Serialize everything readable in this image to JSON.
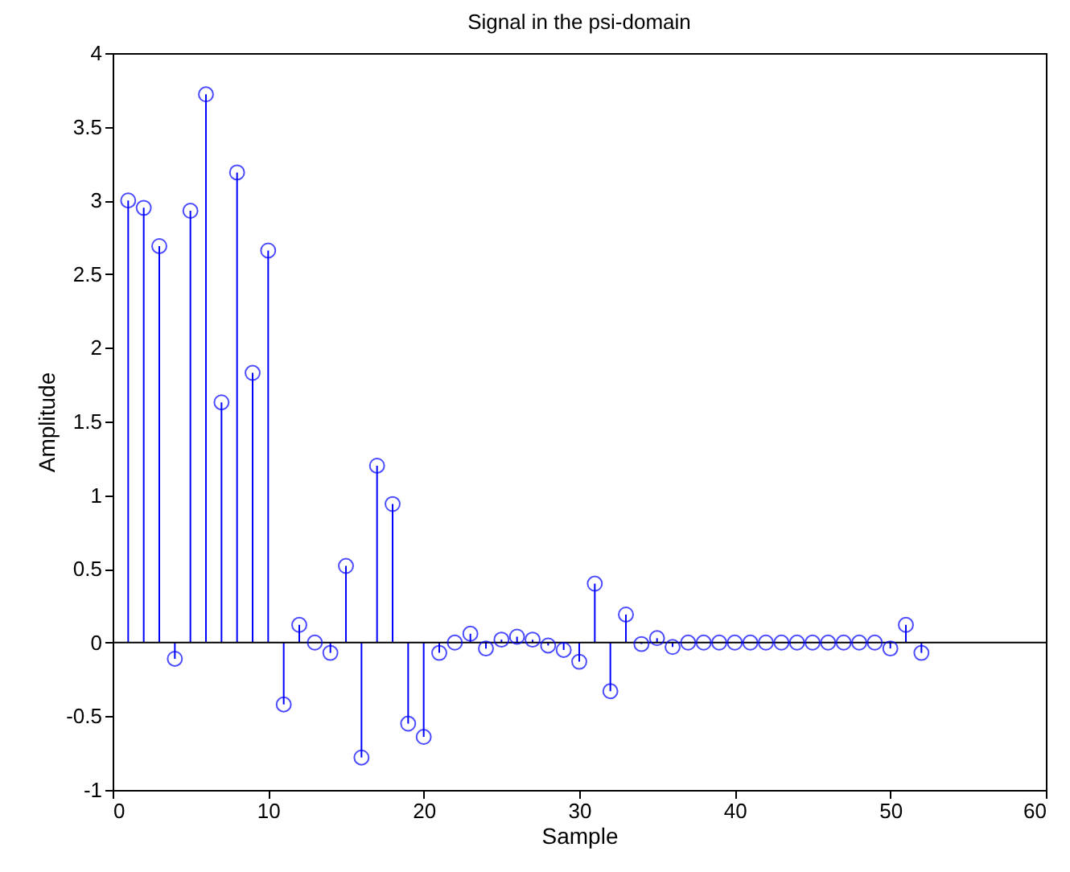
{
  "chart_data": {
    "type": "lollipop",
    "title": "Signal in the psi-domain",
    "xlabel": "Sample",
    "ylabel": "Amplitude",
    "x": [
      1,
      2,
      3,
      4,
      5,
      6,
      7,
      8,
      9,
      10,
      11,
      12,
      13,
      14,
      15,
      16,
      17,
      18,
      19,
      20,
      21,
      22,
      23,
      24,
      25,
      26,
      27,
      28,
      29,
      30,
      31,
      32,
      33,
      34,
      35,
      36,
      37,
      38,
      39,
      40,
      41,
      42,
      43,
      44,
      45,
      46,
      47,
      48,
      49,
      50,
      51,
      52
    ],
    "series": [
      {
        "color": "#0000ff",
        "values": [
          3.0,
          2.95,
          2.69,
          -0.11,
          2.93,
          3.72,
          1.63,
          3.19,
          1.83,
          2.66,
          -0.42,
          0.12,
          0,
          -0.07,
          0.52,
          -0.78,
          1.2,
          0.94,
          -0.55,
          -0.64,
          -0.07,
          0,
          0.06,
          -0.04,
          0.02,
          0.04,
          0.02,
          -0.02,
          -0.05,
          -0.13,
          0.4,
          -0.33,
          0.19,
          -0.01,
          0.03,
          -0.03,
          0,
          0,
          0,
          0,
          0,
          0,
          0,
          0,
          0,
          0,
          0,
          0,
          0,
          -0.04,
          0.12,
          -0.07
        ]
      }
    ],
    "marker": "circle",
    "xlim": [
      0,
      60
    ],
    "xticks": [
      0,
      10,
      20,
      30,
      40,
      50,
      60
    ],
    "ylim": [
      -1,
      4
    ],
    "yticks": [
      -1,
      -0.5,
      0,
      0.5,
      1,
      1.5,
      2,
      2.5,
      3,
      3.5,
      4
    ],
    "ref_lines": [
      {
        "axis": "y",
        "value": 0,
        "color": "#000000"
      }
    ],
    "grid": false
  }
}
